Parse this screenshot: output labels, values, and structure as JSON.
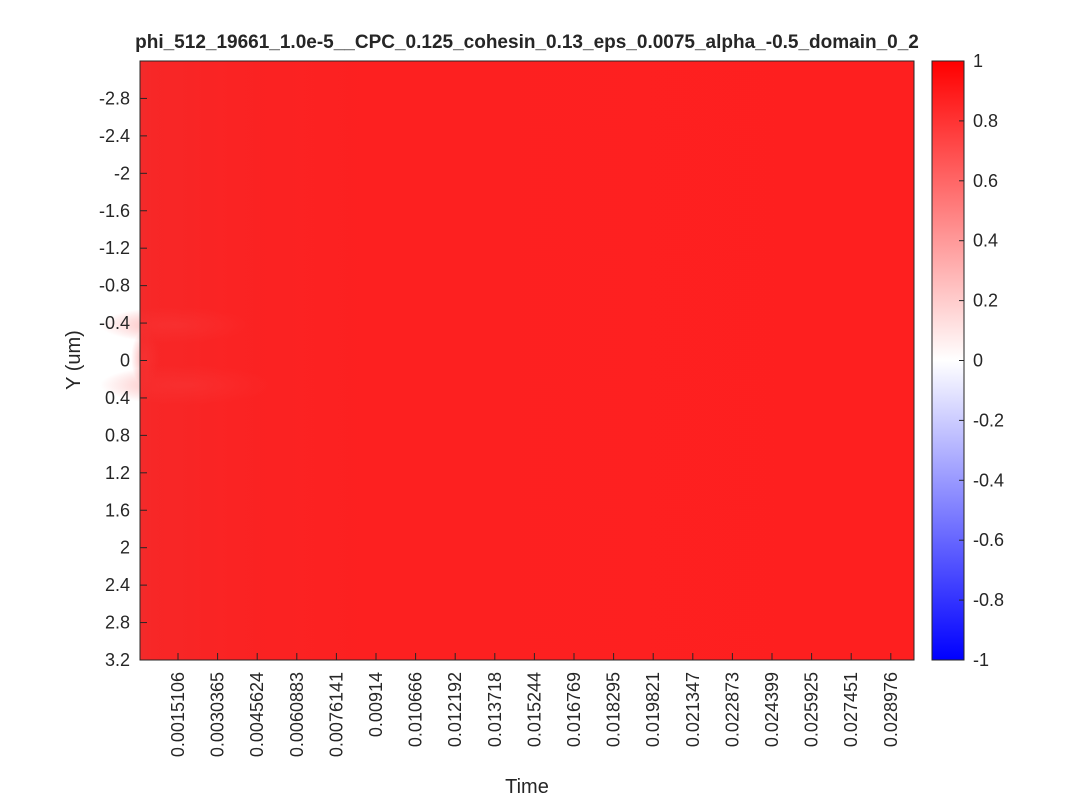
{
  "chart_data": {
    "type": "heatmap",
    "title": "phi_512_19661_1.0e-5__CPC_0.125_cohesin_0.13_eps_0.0075_alpha_-0.5_domain_0_2",
    "xlabel": "Time",
    "ylabel": "Y (um)",
    "x_tick_labels": [
      "0.0015106",
      "0.0030365",
      "0.0045624",
      "0.0060883",
      "0.0076141",
      "0.00914",
      "0.010666",
      "0.012192",
      "0.013718",
      "0.015244",
      "0.016769",
      "0.018295",
      "0.019821",
      "0.021347",
      "0.022873",
      "0.024399",
      "0.025925",
      "0.027451",
      "0.028976"
    ],
    "x_range": [
      0,
      0.0303
    ],
    "y_tick_labels": [
      "-2.8",
      "-2.4",
      "-2",
      "-1.6",
      "-1.2",
      "-0.8",
      "-0.4",
      "0",
      "0.4",
      "0.8",
      "1.2",
      "1.6",
      "2",
      "2.4",
      "2.8",
      "3.2"
    ],
    "y_ticks": [
      -2.8,
      -2.4,
      -2,
      -1.6,
      -1.2,
      -0.8,
      -0.4,
      0,
      0.4,
      0.8,
      1.2,
      1.6,
      2,
      2.4,
      2.8,
      3.2
    ],
    "y_range": [
      -3.2,
      3.2
    ],
    "y_reversed": true,
    "colormap": "blue-white-red",
    "colormap_colors": [
      "#0000ff",
      "#ffffff",
      "#ff0000"
    ],
    "clim": [
      -1,
      1
    ],
    "colorbar_ticks": [
      1,
      0.8,
      0.6,
      0.4,
      0.2,
      0,
      -0.2,
      -0.4,
      -0.6,
      -0.8,
      -1
    ],
    "colorbar_tick_labels": [
      "1",
      "0.8",
      "0.6",
      "0.4",
      "0.2",
      "0",
      "-0.2",
      "-0.4",
      "-0.6",
      "-0.8",
      "-1"
    ],
    "values_summary": {
      "steady_value": 0.93,
      "initial_value": 0.84
    }
  }
}
